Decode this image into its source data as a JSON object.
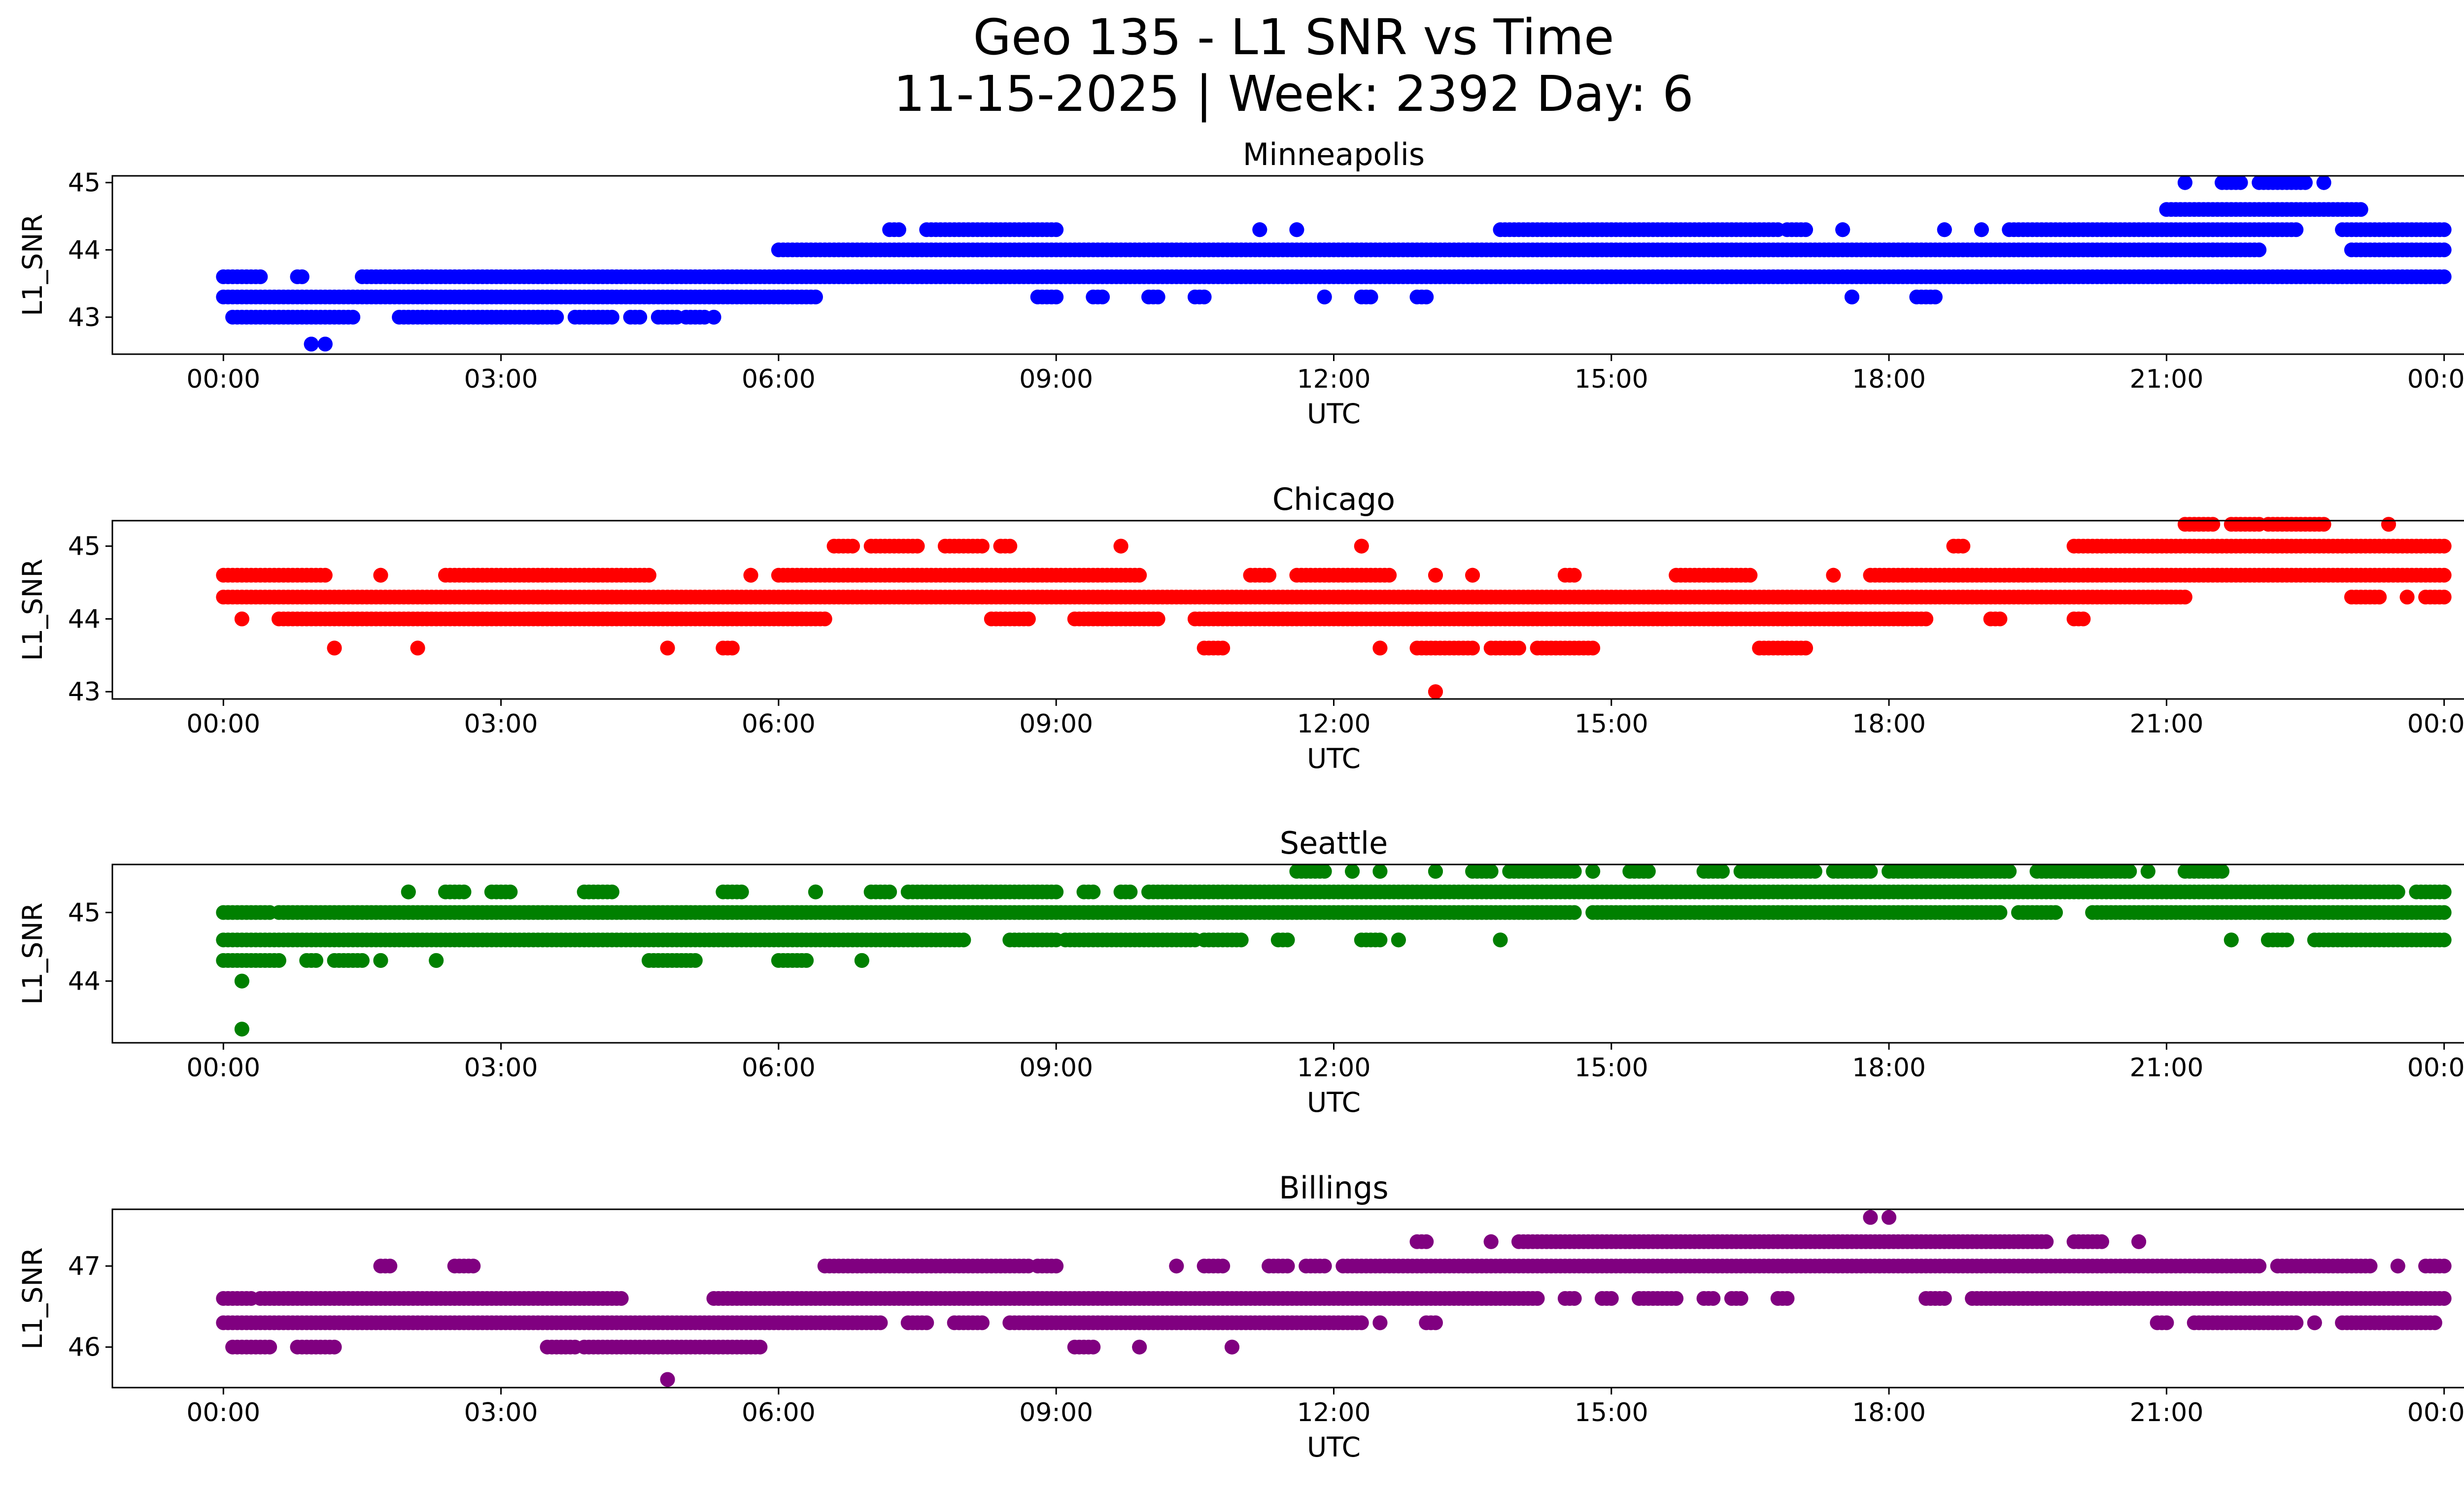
{
  "chart_data": {
    "type": "scatter",
    "title": "Geo 135 - L1 SNR vs Time",
    "subtitle": "11-15-2025 | Week: 2392 Day: 6",
    "x_tick_labels": [
      "00:00",
      "03:00",
      "06:00",
      "09:00",
      "12:00",
      "15:00",
      "18:00",
      "21:00",
      "00:00"
    ],
    "xlim_hours": [
      -1.2,
      25.2
    ],
    "panels": [
      {
        "name": "Minneapolis",
        "color": "#0000ff",
        "xlabel": "UTC",
        "ylabel": "L1_SNR",
        "ylim": [
          42.45,
          45.1
        ],
        "yticks": [
          "43",
          "44",
          "45"
        ],
        "segments": [
          {
            "y": 43.3,
            "ranges": [
              [
                0.0,
                6.4
              ]
            ]
          },
          {
            "y": 43.6,
            "ranges": [
              [
                0.0,
                0.25
              ],
              [
                0.3,
                0.4
              ],
              [
                0.8,
                0.85
              ],
              [
                1.5,
                24.0
              ]
            ]
          },
          {
            "y": 43.0,
            "ranges": [
              [
                0.1,
                1.4
              ],
              [
                1.9,
                3.4
              ],
              [
                3.4,
                3.6
              ],
              [
                3.8,
                4.2
              ],
              [
                4.4,
                4.5
              ],
              [
                4.7,
                4.9
              ],
              [
                5.0,
                5.2
              ],
              [
                5.3,
                5.3
              ]
            ]
          },
          {
            "y": 42.6,
            "ranges": [
              [
                0.95,
                0.95
              ],
              [
                1.1,
                1.1
              ]
            ]
          },
          {
            "y": 44.0,
            "ranges": [
              [
                6.0,
                21.5
              ],
              [
                21.5,
                22.0
              ],
              [
                23.0,
                24.0
              ]
            ]
          },
          {
            "y": 44.3,
            "ranges": [
              [
                7.2,
                7.3
              ],
              [
                7.6,
                9.0
              ],
              [
                11.2,
                11.2
              ],
              [
                11.6,
                11.6
              ],
              [
                13.8,
                16.8
              ],
              [
                16.9,
                17.1
              ],
              [
                17.5,
                17.5
              ],
              [
                18.6,
                18.6
              ],
              [
                19.0,
                19.0
              ],
              [
                19.3,
                22.4
              ],
              [
                22.9,
                24.0
              ]
            ]
          },
          {
            "y": 44.6,
            "ranges": [
              [
                21.0,
                23.1
              ]
            ]
          },
          {
            "y": 45.0,
            "ranges": [
              [
                21.2,
                21.2
              ],
              [
                21.6,
                21.8
              ],
              [
                22.0,
                22.5
              ],
              [
                22.7,
                22.7
              ]
            ]
          },
          {
            "y": 43.3,
            "ranges": [
              [
                8.8,
                9.0
              ],
              [
                9.4,
                9.5
              ],
              [
                10.0,
                10.1
              ],
              [
                10.5,
                10.6
              ],
              [
                11.9,
                11.9
              ],
              [
                12.3,
                12.4
              ],
              [
                12.9,
                13.0
              ],
              [
                17.6,
                17.6
              ],
              [
                18.3,
                18.5
              ]
            ]
          },
          {
            "y": 43.6,
            "ranges": [
              [
                21.1,
                21.1
              ],
              [
                23.8,
                23.8
              ]
            ]
          }
        ]
      },
      {
        "name": "Chicago",
        "color": "#ff0000",
        "xlabel": "UTC",
        "ylabel": "L1_SNR",
        "ylim": [
          42.9,
          45.35
        ],
        "yticks": [
          "43",
          "44",
          "45"
        ],
        "segments": [
          {
            "y": 44.3,
            "ranges": [
              [
                0.0,
                21.2
              ],
              [
                23.0,
                23.3
              ],
              [
                23.6,
                23.6
              ],
              [
                23.8,
                24.0
              ]
            ]
          },
          {
            "y": 44.6,
            "ranges": [
              [
                0.0,
                1.1
              ],
              [
                1.7,
                1.7
              ],
              [
                2.4,
                4.6
              ],
              [
                5.7,
                5.7
              ],
              [
                6.0,
                9.9
              ],
              [
                11.1,
                11.3
              ],
              [
                11.6,
                12.6
              ],
              [
                13.1,
                13.1
              ],
              [
                13.5,
                13.5
              ],
              [
                14.5,
                14.6
              ],
              [
                15.7,
                16.5
              ],
              [
                17.4,
                17.4
              ],
              [
                17.8,
                24.0
              ]
            ]
          },
          {
            "y": 44.0,
            "ranges": [
              [
                0.2,
                0.2
              ],
              [
                0.6,
                6.5
              ],
              [
                8.3,
                8.7
              ],
              [
                9.2,
                10.1
              ],
              [
                10.5,
                18.4
              ],
              [
                19.1,
                19.2
              ],
              [
                20.0,
                20.1
              ]
            ]
          },
          {
            "y": 43.6,
            "ranges": [
              [
                1.2,
                1.2
              ],
              [
                2.1,
                2.1
              ],
              [
                4.8,
                4.8
              ],
              [
                5.4,
                5.5
              ],
              [
                10.6,
                10.8
              ],
              [
                12.5,
                12.5
              ],
              [
                12.9,
                13.5
              ],
              [
                13.7,
                14.0
              ],
              [
                14.2,
                14.8
              ],
              [
                16.6,
                17.1
              ]
            ]
          },
          {
            "y": 43.0,
            "ranges": [
              [
                13.1,
                13.1
              ]
            ]
          },
          {
            "y": 45.0,
            "ranges": [
              [
                6.6,
                6.8
              ],
              [
                7.0,
                7.5
              ],
              [
                7.8,
                8.2
              ],
              [
                8.4,
                8.5
              ],
              [
                9.7,
                9.7
              ],
              [
                12.3,
                12.3
              ],
              [
                18.7,
                18.8
              ],
              [
                20.0,
                24.0
              ]
            ]
          },
          {
            "y": 45.3,
            "ranges": [
              [
                21.2,
                21.5
              ],
              [
                21.7,
                22.0
              ],
              [
                22.1,
                22.7
              ],
              [
                23.4,
                23.4
              ]
            ]
          }
        ]
      },
      {
        "name": "Seattle",
        "color": "#008000",
        "xlabel": "UTC",
        "ylabel": "L1_SNR",
        "ylim": [
          43.1,
          45.7
        ],
        "yticks": [
          "44",
          "45"
        ],
        "segments": [
          {
            "y": 44.6,
            "ranges": [
              [
                0.0,
                8.0
              ],
              [
                8.5,
                9.0
              ],
              [
                9.1,
                10.5
              ],
              [
                10.6,
                11.0
              ],
              [
                11.4,
                11.5
              ],
              [
                12.3,
                12.5
              ],
              [
                12.7,
                12.7
              ],
              [
                13.8,
                13.8
              ],
              [
                21.7,
                21.7
              ],
              [
                22.1,
                22.3
              ],
              [
                22.6,
                24.0
              ]
            ]
          },
          {
            "y": 44.3,
            "ranges": [
              [
                0.0,
                0.6
              ],
              [
                0.9,
                1.0
              ],
              [
                1.2,
                1.5
              ],
              [
                1.7,
                1.7
              ],
              [
                2.3,
                2.3
              ],
              [
                4.6,
                5.1
              ],
              [
                6.0,
                6.3
              ],
              [
                6.9,
                6.9
              ]
            ]
          },
          {
            "y": 45.0,
            "ranges": [
              [
                0.0,
                0.5
              ],
              [
                0.6,
                5.0
              ],
              [
                5.0,
                14.6
              ],
              [
                14.8,
                19.2
              ],
              [
                19.4,
                19.8
              ],
              [
                20.2,
                24.0
              ]
            ]
          },
          {
            "y": 45.3,
            "ranges": [
              [
                2.0,
                2.0
              ],
              [
                2.4,
                2.6
              ],
              [
                2.9,
                3.1
              ],
              [
                3.9,
                4.2
              ],
              [
                5.4,
                5.6
              ],
              [
                6.4,
                6.4
              ],
              [
                7.0,
                7.2
              ],
              [
                7.4,
                9.0
              ],
              [
                9.3,
                9.4
              ],
              [
                9.7,
                9.8
              ],
              [
                10.0,
                23.5
              ],
              [
                23.7,
                24.0
              ]
            ]
          },
          {
            "y": 45.6,
            "ranges": [
              [
                11.6,
                11.9
              ],
              [
                12.2,
                12.2
              ],
              [
                12.5,
                12.5
              ],
              [
                13.1,
                13.1
              ],
              [
                13.5,
                13.7
              ],
              [
                13.9,
                14.6
              ],
              [
                14.8,
                14.8
              ],
              [
                15.2,
                15.4
              ],
              [
                16.0,
                16.2
              ],
              [
                16.4,
                17.2
              ],
              [
                17.4,
                17.8
              ],
              [
                18.0,
                19.3
              ],
              [
                19.6,
                20.6
              ],
              [
                20.8,
                20.8
              ],
              [
                21.2,
                21.6
              ]
            ]
          },
          {
            "y": 44.0,
            "ranges": [
              [
                0.2,
                0.2
              ]
            ]
          },
          {
            "y": 43.3,
            "ranges": [
              [
                0.2,
                0.2
              ]
            ]
          }
        ]
      },
      {
        "name": "Billings",
        "color": "#800080",
        "xlabel": "UTC",
        "ylabel": "L1_SNR",
        "ylim": [
          45.5,
          47.7
        ],
        "yticks": [
          "46",
          "47"
        ],
        "segments": [
          {
            "y": 46.3,
            "ranges": [
              [
                0.0,
                7.1
              ],
              [
                7.4,
                7.6
              ],
              [
                7.9,
                8.2
              ],
              [
                8.5,
                12.3
              ],
              [
                12.5,
                12.5
              ],
              [
                13.0,
                13.1
              ],
              [
                20.9,
                21.0
              ],
              [
                21.3,
                22.4
              ],
              [
                22.6,
                22.6
              ],
              [
                22.9,
                23.9
              ]
            ]
          },
          {
            "y": 46.6,
            "ranges": [
              [
                0.0,
                0.3
              ],
              [
                0.4,
                4.3
              ],
              [
                5.3,
                14.2
              ],
              [
                14.5,
                14.6
              ],
              [
                14.9,
                15.0
              ],
              [
                15.3,
                15.7
              ],
              [
                16.0,
                16.1
              ],
              [
                16.3,
                16.4
              ],
              [
                16.8,
                16.9
              ],
              [
                18.4,
                18.6
              ],
              [
                18.9,
                24.0
              ]
            ]
          },
          {
            "y": 46.0,
            "ranges": [
              [
                0.1,
                0.5
              ],
              [
                0.8,
                1.2
              ],
              [
                3.5,
                3.8
              ],
              [
                3.9,
                5.8
              ],
              [
                9.2,
                9.4
              ],
              [
                9.9,
                9.9
              ],
              [
                10.9,
                10.9
              ]
            ]
          },
          {
            "y": 45.6,
            "ranges": [
              [
                4.8,
                4.8
              ]
            ]
          },
          {
            "y": 47.0,
            "ranges": [
              [
                1.7,
                1.8
              ],
              [
                2.5,
                2.7
              ],
              [
                6.5,
                8.7
              ],
              [
                8.8,
                9.0
              ],
              [
                10.3,
                10.3
              ],
              [
                10.6,
                10.8
              ],
              [
                11.3,
                11.5
              ],
              [
                11.7,
                11.9
              ],
              [
                12.1,
                22.0
              ],
              [
                22.2,
                23.2
              ],
              [
                23.5,
                23.5
              ],
              [
                23.8,
                24.0
              ]
            ]
          },
          {
            "y": 47.3,
            "ranges": [
              [
                12.9,
                13.0
              ],
              [
                13.7,
                13.7
              ],
              [
                14.0,
                19.7
              ],
              [
                20.0,
                20.3
              ],
              [
                20.7,
                20.7
              ]
            ]
          },
          {
            "y": 47.6,
            "ranges": [
              [
                17.8,
                17.8
              ],
              [
                18.0,
                18.0
              ]
            ]
          }
        ]
      }
    ]
  }
}
